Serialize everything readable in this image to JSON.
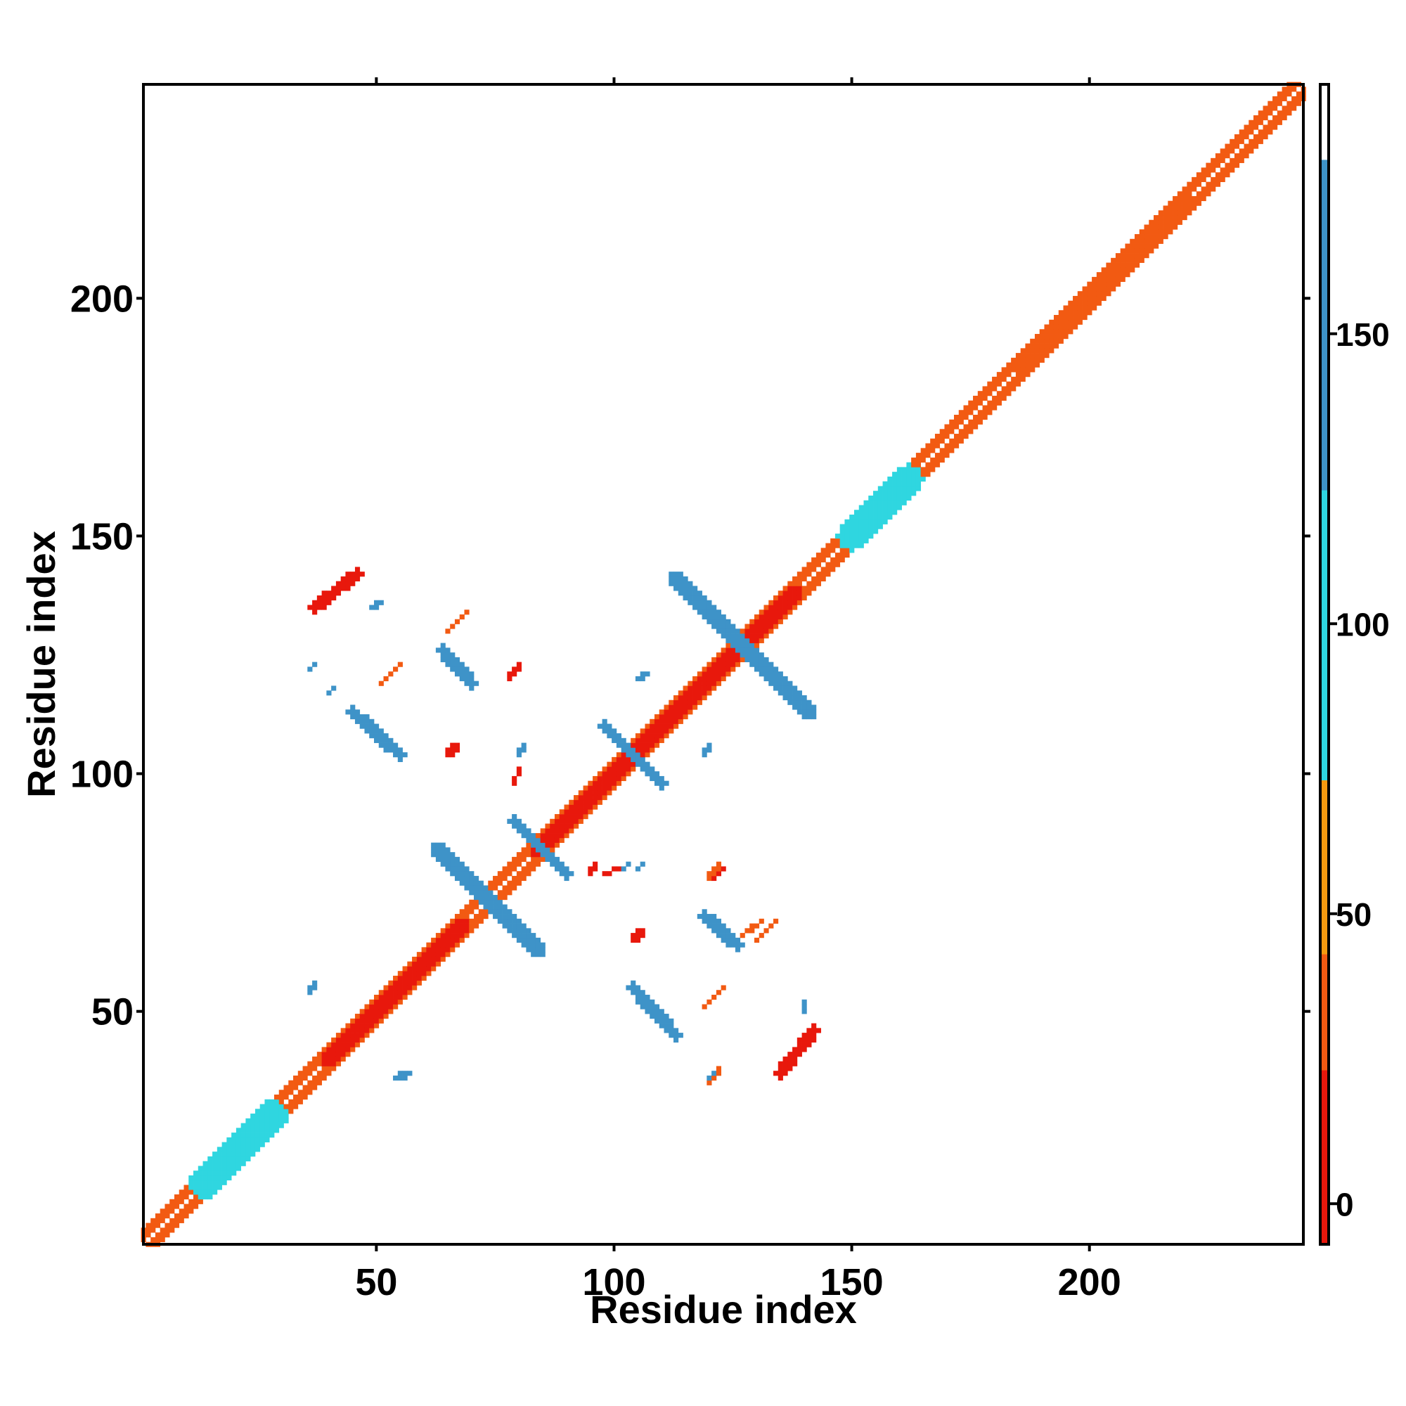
{
  "chart_data": {
    "type": "heatmap",
    "title": "",
    "xlabel": "Residue index",
    "ylabel": "Residue index",
    "xlim": [
      1,
      245
    ],
    "ylim": [
      1,
      245
    ],
    "xticks": [
      50,
      100,
      150,
      200
    ],
    "yticks": [
      50,
      100,
      150,
      200
    ],
    "grid": false,
    "colorbar": {
      "placement": "right",
      "ticks": [
        0,
        50,
        100,
        150
      ],
      "range": [
        -7,
        193
      ],
      "bands": [
        {
          "from": -7,
          "to": 23,
          "color": "#e8180c"
        },
        {
          "from": 23,
          "to": 43,
          "color": "#f25a12"
        },
        {
          "from": 43,
          "to": 73,
          "color": "#f59a10"
        },
        {
          "from": 73,
          "to": 123,
          "color": "#2fd6e0"
        },
        {
          "from": 123,
          "to": 180,
          "color": "#3e93c8"
        },
        {
          "from": 180,
          "to": 193,
          "color": "#ffffff"
        }
      ]
    },
    "features": [
      {
        "kind": "diagonal",
        "x0": 1,
        "y0": 1,
        "x1": 245,
        "y1": 245,
        "halfwidth": 2.2,
        "value": 40
      },
      {
        "kind": "diagonal",
        "x0": 1,
        "y0": 1,
        "x1": 245,
        "y1": 245,
        "halfwidth": 0.6,
        "value": 190
      },
      {
        "kind": "diagonal",
        "x0": 14,
        "y0": 14,
        "x1": 28,
        "y1": 28,
        "halfwidth": 3.2,
        "value": 75
      },
      {
        "kind": "diagonal",
        "x0": 40,
        "y0": 40,
        "x1": 68,
        "y1": 68,
        "halfwidth": 1.5,
        "value": 5
      },
      {
        "kind": "diagonal",
        "x0": 84,
        "y0": 84,
        "x1": 138,
        "y1": 138,
        "halfwidth": 1.5,
        "value": 5
      },
      {
        "kind": "diagonal",
        "x0": 150,
        "y0": 150,
        "x1": 162,
        "y1": 162,
        "halfwidth": 3.0,
        "value": 75
      },
      {
        "kind": "diagonal",
        "x0": 186,
        "y0": 186,
        "x1": 220,
        "y1": 220,
        "halfwidth": 2.6,
        "value": 30
      },
      {
        "kind": "segment",
        "x0": 63,
        "y0": 84,
        "x1": 84,
        "y1": 63,
        "halfwidth": 1.5,
        "value": 140
      },
      {
        "kind": "segment",
        "x0": 79,
        "y0": 90,
        "x1": 90,
        "y1": 79,
        "halfwidth": 1.3,
        "value": 140
      },
      {
        "kind": "segment",
        "x0": 98,
        "y0": 110,
        "x1": 110,
        "y1": 98,
        "halfwidth": 1.3,
        "value": 140
      },
      {
        "kind": "segment",
        "x0": 113,
        "y0": 141,
        "x1": 141,
        "y1": 113,
        "halfwidth": 1.5,
        "value": 140
      },
      {
        "kind": "segment",
        "x0": 64,
        "y0": 126,
        "x1": 70,
        "y1": 119,
        "halfwidth": 1.4,
        "value": 140
      },
      {
        "kind": "segment",
        "x0": 119,
        "y0": 70,
        "x1": 126,
        "y1": 64,
        "halfwidth": 1.4,
        "value": 140
      },
      {
        "kind": "segment",
        "x0": 45,
        "y0": 113,
        "x1": 55,
        "y1": 104,
        "halfwidth": 1.3,
        "value": 140
      },
      {
        "kind": "segment",
        "x0": 104,
        "y0": 55,
        "x1": 113,
        "y1": 45,
        "halfwidth": 1.3,
        "value": 140
      },
      {
        "kind": "segment",
        "x0": 37,
        "y0": 135,
        "x1": 46,
        "y1": 142,
        "halfwidth": 1.3,
        "value": 10
      },
      {
        "kind": "segment",
        "x0": 135,
        "y0": 37,
        "x1": 142,
        "y1": 46,
        "halfwidth": 1.3,
        "value": 10
      },
      {
        "kind": "segment",
        "x0": 65,
        "y0": 130,
        "x1": 69,
        "y1": 134,
        "halfwidth": 0.6,
        "value": 40
      },
      {
        "kind": "segment",
        "x0": 130,
        "y0": 65,
        "x1": 134,
        "y1": 69,
        "halfwidth": 0.6,
        "value": 40
      },
      {
        "kind": "segment",
        "x0": 51,
        "y0": 119,
        "x1": 55,
        "y1": 123,
        "halfwidth": 0.6,
        "value": 40
      },
      {
        "kind": "segment",
        "x0": 119,
        "y0": 51,
        "x1": 123,
        "y1": 55,
        "halfwidth": 0.6,
        "value": 40
      },
      {
        "kind": "segment",
        "x0": 78,
        "y0": 120,
        "x1": 80,
        "y1": 123,
        "halfwidth": 0.6,
        "value": 10
      },
      {
        "kind": "segment",
        "x0": 120,
        "y0": 78,
        "x1": 123,
        "y1": 80,
        "halfwidth": 0.6,
        "value": 10
      },
      {
        "kind": "segment",
        "x0": 65,
        "y0": 104,
        "x1": 67,
        "y1": 106,
        "halfwidth": 0.9,
        "value": 10
      },
      {
        "kind": "segment",
        "x0": 104,
        "y0": 65,
        "x1": 106,
        "y1": 67,
        "halfwidth": 0.9,
        "value": 10
      },
      {
        "kind": "segment",
        "x0": 79,
        "y0": 98,
        "x1": 80,
        "y1": 101,
        "halfwidth": 0.6,
        "value": 10
      },
      {
        "kind": "segment",
        "x0": 98,
        "y0": 79,
        "x1": 101,
        "y1": 80,
        "halfwidth": 0.6,
        "value": 10
      },
      {
        "kind": "segment",
        "x0": 120,
        "y0": 78,
        "x1": 122,
        "y1": 81,
        "halfwidth": 0.6,
        "value": 40
      },
      {
        "kind": "segment",
        "x0": 127,
        "y0": 66,
        "x1": 131,
        "y1": 69,
        "halfwidth": 0.6,
        "value": 40
      },
      {
        "kind": "segment",
        "x0": 120,
        "y0": 35,
        "x1": 122,
        "y1": 38,
        "halfwidth": 0.6,
        "value": 40
      },
      {
        "kind": "segment",
        "x0": 36,
        "y0": 54,
        "x1": 37,
        "y1": 56,
        "halfwidth": 0.5,
        "value": 140
      },
      {
        "kind": "segment",
        "x0": 54,
        "y0": 36,
        "x1": 56,
        "y1": 37,
        "halfwidth": 0.5,
        "value": 140
      },
      {
        "kind": "segment",
        "x0": 36,
        "y0": 122,
        "x1": 37,
        "y1": 123,
        "halfwidth": 0.5,
        "value": 140
      },
      {
        "kind": "segment",
        "x0": 56,
        "y0": 36,
        "x1": 57,
        "y1": 37,
        "halfwidth": 0.5,
        "value": 140
      },
      {
        "kind": "segment",
        "x0": 120,
        "y0": 36,
        "x1": 121,
        "y1": 37,
        "halfwidth": 0.5,
        "value": 140
      },
      {
        "kind": "segment",
        "x0": 140,
        "y0": 50,
        "x1": 140,
        "y1": 52,
        "halfwidth": 0.5,
        "value": 140
      },
      {
        "kind": "segment",
        "x0": 105,
        "y0": 120,
        "x1": 107,
        "y1": 121,
        "halfwidth": 0.5,
        "value": 140
      },
      {
        "kind": "segment",
        "x0": 119,
        "y0": 104,
        "x1": 120,
        "y1": 106,
        "halfwidth": 0.5,
        "value": 140
      },
      {
        "kind": "segment",
        "x0": 80,
        "y0": 104,
        "x1": 81,
        "y1": 106,
        "halfwidth": 0.5,
        "value": 140
      },
      {
        "kind": "segment",
        "x0": 102,
        "y0": 80,
        "x1": 103,
        "y1": 81,
        "halfwidth": 0.5,
        "value": 140
      },
      {
        "kind": "segment",
        "x0": 105,
        "y0": 80,
        "x1": 106,
        "y1": 81,
        "halfwidth": 0.5,
        "value": 140
      },
      {
        "kind": "segment",
        "x0": 95,
        "y0": 79,
        "x1": 96,
        "y1": 81,
        "halfwidth": 0.5,
        "value": 10
      },
      {
        "kind": "segment",
        "x0": 40,
        "y0": 117,
        "x1": 41,
        "y1": 118,
        "halfwidth": 0.5,
        "value": 140
      },
      {
        "kind": "segment",
        "x0": 49,
        "y0": 135,
        "x1": 51,
        "y1": 136,
        "halfwidth": 0.5,
        "value": 140
      }
    ]
  }
}
